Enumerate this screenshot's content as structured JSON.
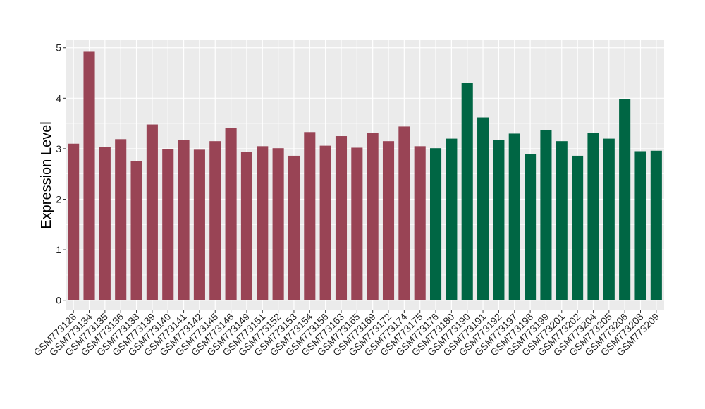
{
  "chart_data": {
    "type": "bar",
    "ylabel": "Expression Level",
    "xlabel": "",
    "title": "",
    "ylim": [
      -0.2,
      5.15
    ],
    "y_ticks": [
      "0",
      "1",
      "2",
      "3",
      "4",
      "5"
    ],
    "grid": true,
    "legend": "none",
    "colors": {
      "panel": "#EBEBEB",
      "grid": "#FFFFFF",
      "group_a": "#994455",
      "group_b": "#006644"
    },
    "categories": [
      "GSM773128",
      "GSM773134",
      "GSM773135",
      "GSM773136",
      "GSM773138",
      "GSM773139",
      "GSM773140",
      "GSM773141",
      "GSM773142",
      "GSM773145",
      "GSM773146",
      "GSM773149",
      "GSM773151",
      "GSM773152",
      "GSM773153",
      "GSM773154",
      "GSM773156",
      "GSM773163",
      "GSM773165",
      "GSM773169",
      "GSM773172",
      "GSM773174",
      "GSM773175",
      "GSM773176",
      "GSM773180",
      "GSM773190",
      "GSM773191",
      "GSM773192",
      "GSM773197",
      "GSM773198",
      "GSM773199",
      "GSM773201",
      "GSM773202",
      "GSM773204",
      "GSM773205",
      "GSM773206",
      "GSM773208",
      "GSM773209"
    ],
    "values": [
      3.1,
      4.92,
      3.03,
      3.19,
      2.76,
      3.48,
      2.99,
      3.17,
      2.98,
      3.15,
      3.41,
      2.93,
      3.05,
      3.01,
      2.86,
      3.33,
      3.06,
      3.25,
      3.02,
      3.31,
      3.15,
      3.44,
      3.05,
      3.01,
      3.2,
      4.31,
      3.62,
      3.17,
      3.3,
      2.89,
      3.37,
      3.15,
      2.86,
      3.31,
      3.2,
      3.99,
      2.95,
      2.96
    ],
    "groups": [
      "a",
      "a",
      "a",
      "a",
      "a",
      "a",
      "a",
      "a",
      "a",
      "a",
      "a",
      "a",
      "a",
      "a",
      "a",
      "a",
      "a",
      "a",
      "a",
      "a",
      "a",
      "a",
      "a",
      "b",
      "b",
      "b",
      "b",
      "b",
      "b",
      "b",
      "b",
      "b",
      "b",
      "b",
      "b",
      "b",
      "b",
      "b"
    ]
  }
}
